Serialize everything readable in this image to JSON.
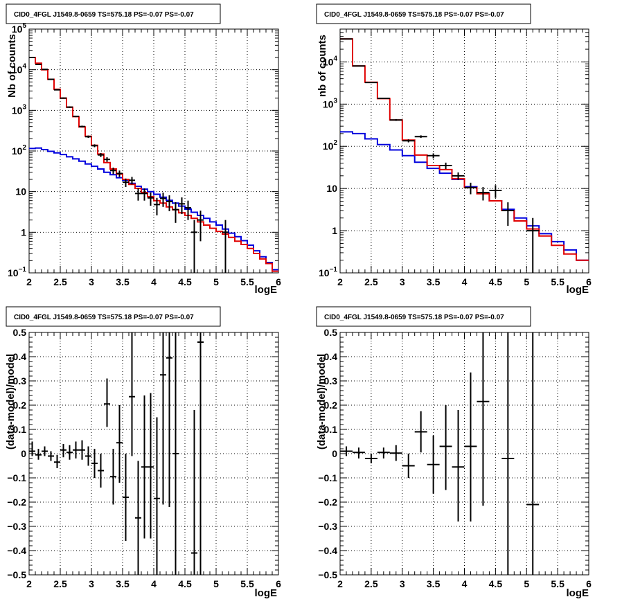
{
  "chart_data": [
    {
      "type": "line",
      "title": "CID0_4FGL J1549.8-0659 TS=575.18 PS=-0.07 PS=-0.07",
      "xlabel": "logE",
      "ylabel": "Nb of counts",
      "xlim": [
        2,
        6
      ],
      "ylim": [
        0.1,
        100000
      ],
      "yscale": "log",
      "grid": true,
      "xticks": [
        "2",
        "2.5",
        "3",
        "3.5",
        "4",
        "4.5",
        "5",
        "5.5",
        "6"
      ],
      "yticks": [
        {
          "value": 0.1,
          "label": "10",
          "exp": "−1"
        },
        {
          "value": 1,
          "label": "1",
          "exp": ""
        },
        {
          "value": 10,
          "label": "10",
          "exp": ""
        },
        {
          "value": 100,
          "label": "10",
          "exp": "2"
        },
        {
          "value": 1000,
          "label": "10",
          "exp": "3"
        },
        {
          "value": 10000,
          "label": "10",
          "exp": "4"
        },
        {
          "value": 100000,
          "label": "10",
          "exp": "5"
        }
      ],
      "series": [
        {
          "name": "",
          "color": "#e00000",
          "kind": "step",
          "edges": [
            2.0,
            2.1,
            2.2,
            2.3,
            2.4,
            2.5,
            2.6,
            2.7,
            2.8,
            2.9,
            3.0,
            3.1,
            3.2,
            3.3,
            3.4,
            3.5,
            3.6,
            3.7,
            3.8,
            3.9,
            4.0,
            4.1,
            4.2,
            4.3,
            4.4,
            4.5,
            4.6,
            4.7,
            4.8,
            4.9,
            5.0,
            5.1,
            5.2,
            5.3,
            5.4,
            5.5,
            5.6,
            5.7,
            5.8,
            5.9,
            6.0
          ],
          "values": [
            20000,
            14500,
            10000,
            5800,
            3300,
            2000,
            1200,
            700,
            390,
            230,
            138,
            84,
            52,
            36,
            27,
            20,
            15,
            12,
            9.5,
            7.5,
            6.0,
            5.2,
            4.2,
            3.6,
            3.0,
            2.6,
            2.2,
            1.8,
            1.5,
            1.25,
            1.05,
            0.9,
            0.75,
            0.6,
            0.5,
            0.4,
            0.3,
            0.22,
            0.17,
            0.11
          ]
        },
        {
          "name": "",
          "color": "#0000dd",
          "kind": "step",
          "edges": [
            2.0,
            2.1,
            2.2,
            2.3,
            2.4,
            2.5,
            2.6,
            2.7,
            2.8,
            2.9,
            3.0,
            3.1,
            3.2,
            3.3,
            3.4,
            3.5,
            3.6,
            3.7,
            3.8,
            3.9,
            4.0,
            4.1,
            4.2,
            4.3,
            4.4,
            4.5,
            4.6,
            4.7,
            4.8,
            4.9,
            5.0,
            5.1,
            5.2,
            5.3,
            5.4,
            5.5,
            5.6,
            5.7,
            5.8,
            5.9,
            6.0
          ],
          "values": [
            115,
            118,
            108,
            98,
            90,
            82,
            72,
            64,
            56,
            48,
            42,
            36,
            30,
            26,
            22,
            19,
            16,
            13.5,
            11.5,
            10,
            8.6,
            7.3,
            6.1,
            5.2,
            4.4,
            3.7,
            3.1,
            2.6,
            2.2,
            1.8,
            1.5,
            1.2,
            0.95,
            0.78,
            0.62,
            0.48,
            0.35,
            0.25,
            0.18,
            0.12
          ]
        }
      ],
      "points": [
        {
          "x": 2.05,
          "y": 20000,
          "lo": 19700,
          "hi": 20300
        },
        {
          "x": 2.15,
          "y": 13500,
          "lo": 13300,
          "hi": 13700
        },
        {
          "x": 2.25,
          "y": 10200,
          "lo": 10000,
          "hi": 10400
        },
        {
          "x": 2.35,
          "y": 5800,
          "lo": 5650,
          "hi": 5950
        },
        {
          "x": 2.45,
          "y": 3200,
          "lo": 3100,
          "hi": 3300
        },
        {
          "x": 2.55,
          "y": 2000,
          "lo": 1930,
          "hi": 2070
        },
        {
          "x": 2.65,
          "y": 1200,
          "lo": 1150,
          "hi": 1250
        },
        {
          "x": 2.75,
          "y": 710,
          "lo": 680,
          "hi": 740
        },
        {
          "x": 2.85,
          "y": 400,
          "lo": 380,
          "hi": 420
        },
        {
          "x": 2.95,
          "y": 225,
          "lo": 210,
          "hi": 240
        },
        {
          "x": 3.05,
          "y": 135,
          "lo": 124,
          "hi": 146
        },
        {
          "x": 3.15,
          "y": 80,
          "lo": 71,
          "hi": 89
        },
        {
          "x": 3.25,
          "y": 62,
          "lo": 54,
          "hi": 70
        },
        {
          "x": 3.35,
          "y": 33,
          "lo": 27,
          "hi": 39
        },
        {
          "x": 3.45,
          "y": 28,
          "lo": 23,
          "hi": 33
        },
        {
          "x": 3.55,
          "y": 17,
          "lo": 13,
          "hi": 21
        },
        {
          "x": 3.65,
          "y": 19,
          "lo": 15,
          "hi": 23
        },
        {
          "x": 3.75,
          "y": 9,
          "lo": 6,
          "hi": 12
        },
        {
          "x": 3.85,
          "y": 9,
          "lo": 6,
          "hi": 12
        },
        {
          "x": 3.95,
          "y": 7,
          "lo": 4.5,
          "hi": 9.5
        },
        {
          "x": 4.05,
          "y": 4.8,
          "lo": 2.6,
          "hi": 7
        },
        {
          "x": 4.15,
          "y": 6.8,
          "lo": 4.2,
          "hi": 9.4
        },
        {
          "x": 4.25,
          "y": 5.7,
          "lo": 3.3,
          "hi": 8.1
        },
        {
          "x": 4.35,
          "y": 3.6,
          "lo": 1.7,
          "hi": 5.5
        },
        {
          "x": 4.45,
          "y": 5.0,
          "lo": 2.8,
          "hi": 7.2
        },
        {
          "x": 4.55,
          "y": 4.0,
          "lo": 2.0,
          "hi": 6.0
        },
        {
          "x": 4.65,
          "y": 1,
          "lo": 0.1,
          "hi": 2.0
        },
        {
          "x": 4.75,
          "y": 2,
          "lo": 0.6,
          "hi": 3.4
        },
        {
          "x": 5.15,
          "y": 1,
          "lo": 0.1,
          "hi": 2.0
        }
      ]
    },
    {
      "type": "line",
      "title": "CID0_4FGL J1549.8-0659 TS=575.18 PS=-0.07 PS=-0.07",
      "xlabel": "logE",
      "ylabel": "nb of counts",
      "xlim": [
        2,
        6
      ],
      "ylim": [
        0.1,
        60000
      ],
      "yscale": "log",
      "grid": true,
      "xticks": [
        "2",
        "2.5",
        "3",
        "3.5",
        "4",
        "4.5",
        "5",
        "5.5",
        "6"
      ],
      "yticks": [
        {
          "value": 0.1,
          "label": "10",
          "exp": "−1"
        },
        {
          "value": 1,
          "label": "1",
          "exp": ""
        },
        {
          "value": 10,
          "label": "10",
          "exp": ""
        },
        {
          "value": 100,
          "label": "10",
          "exp": "2"
        },
        {
          "value": 1000,
          "label": "10",
          "exp": "3"
        },
        {
          "value": 10000,
          "label": "10",
          "exp": "4"
        }
      ],
      "series": [
        {
          "name": "",
          "color": "#e00000",
          "kind": "step",
          "edges": [
            2.0,
            2.2,
            2.4,
            2.6,
            2.8,
            3.0,
            3.2,
            3.4,
            3.6,
            3.8,
            4.0,
            4.2,
            4.4,
            4.6,
            4.8,
            5.0,
            5.2,
            5.4,
            5.6,
            5.8,
            6.0
          ],
          "values": [
            35000,
            8000,
            3300,
            1350,
            420,
            140,
            62,
            35,
            28,
            17,
            10.5,
            7.5,
            5.1,
            3.0,
            1.7,
            1.1,
            0.75,
            0.45,
            0.28,
            0.2
          ]
        },
        {
          "name": "",
          "color": "#0000dd",
          "kind": "step",
          "edges": [
            2.0,
            2.2,
            2.4,
            2.6,
            2.8,
            3.0,
            3.2,
            3.4,
            3.6,
            3.8,
            4.0,
            4.2,
            4.4,
            4.6,
            4.8,
            5.0,
            5.2,
            5.4,
            5.6,
            5.8,
            6.0
          ],
          "values": [
            220,
            200,
            150,
            110,
            82,
            60,
            42,
            30,
            23,
            16.5,
            11,
            7.8,
            5.1,
            3.2,
            2.0,
            1.3,
            0.85,
            0.55,
            0.35,
            0.2
          ]
        }
      ],
      "points": [
        {
          "x": 2.1,
          "y": 35000,
          "lo": 34700,
          "hi": 35300
        },
        {
          "x": 2.3,
          "y": 8000,
          "lo": 7850,
          "hi": 8150
        },
        {
          "x": 2.5,
          "y": 3250,
          "lo": 3150,
          "hi": 3350
        },
        {
          "x": 2.7,
          "y": 1370,
          "lo": 1320,
          "hi": 1420
        },
        {
          "x": 2.9,
          "y": 420,
          "lo": 400,
          "hi": 440
        },
        {
          "x": 3.1,
          "y": 135,
          "lo": 124,
          "hi": 146
        },
        {
          "x": 3.3,
          "y": 170,
          "lo": 158,
          "hi": 182
        },
        {
          "x": 3.5,
          "y": 60,
          "lo": 52,
          "hi": 68
        },
        {
          "x": 3.7,
          "y": 35,
          "lo": 29,
          "hi": 41
        },
        {
          "x": 3.9,
          "y": 20,
          "lo": 16,
          "hi": 24
        },
        {
          "x": 4.1,
          "y": 10.5,
          "lo": 7.3,
          "hi": 13.7
        },
        {
          "x": 4.3,
          "y": 8,
          "lo": 5.2,
          "hi": 10.8
        },
        {
          "x": 4.5,
          "y": 9,
          "lo": 6,
          "hi": 12
        },
        {
          "x": 4.7,
          "y": 3,
          "lo": 1.3,
          "hi": 4.7
        },
        {
          "x": 5.1,
          "y": 1,
          "lo": 0.1,
          "hi": 2.0
        }
      ]
    },
    {
      "type": "scatter",
      "title": "CID0_4FGL J1549.8-0659 TS=575.18 PS=-0.07 PS=-0.07",
      "xlabel": "logE",
      "ylabel": "(data-model)/model",
      "xlim": [
        2,
        6
      ],
      "ylim": [
        -0.5,
        0.5
      ],
      "grid": true,
      "xticks": [
        "2",
        "2.5",
        "3",
        "3.5",
        "4",
        "4.5",
        "5",
        "5.5",
        "6"
      ],
      "yticks": [
        "−0.5",
        "−0.4",
        "−0.3",
        "−0.2",
        "−0.1",
        "0",
        "0.1",
        "0.2",
        "0.3",
        "0.4",
        "0.5"
      ],
      "points": [
        {
          "x": 2.05,
          "y": 0.01,
          "lo": -0.01,
          "hi": 0.05
        },
        {
          "x": 2.15,
          "y": -0.005,
          "lo": -0.025,
          "hi": 0.02
        },
        {
          "x": 2.25,
          "y": 0.01,
          "lo": -0.01,
          "hi": 0.03
        },
        {
          "x": 2.35,
          "y": -0.01,
          "lo": -0.03,
          "hi": 0.01
        },
        {
          "x": 2.45,
          "y": -0.035,
          "lo": -0.06,
          "hi": -0.005
        },
        {
          "x": 2.55,
          "y": 0.015,
          "lo": -0.015,
          "hi": 0.04
        },
        {
          "x": 2.65,
          "y": 0.005,
          "lo": -0.025,
          "hi": 0.035
        },
        {
          "x": 2.75,
          "y": 0.015,
          "lo": -0.02,
          "hi": 0.05
        },
        {
          "x": 2.85,
          "y": 0.015,
          "lo": -0.025,
          "hi": 0.055
        },
        {
          "x": 2.95,
          "y": -0.01,
          "lo": -0.05,
          "hi": 0.03
        },
        {
          "x": 3.05,
          "y": -0.04,
          "lo": -0.1,
          "hi": 0.02
        },
        {
          "x": 3.15,
          "y": -0.07,
          "lo": -0.14,
          "hi": 0.0
        },
        {
          "x": 3.25,
          "y": 0.205,
          "lo": 0.11,
          "hi": 0.31
        },
        {
          "x": 3.35,
          "y": -0.095,
          "lo": -0.21,
          "hi": 0.02
        },
        {
          "x": 3.45,
          "y": 0.045,
          "lo": -0.12,
          "hi": 0.2
        },
        {
          "x": 3.55,
          "y": -0.18,
          "lo": -0.36,
          "hi": 0.0
        },
        {
          "x": 3.65,
          "y": 0.235,
          "lo": -0.01,
          "hi": 0.5
        },
        {
          "x": 3.75,
          "y": -0.265,
          "lo": -0.5,
          "hi": -0.03
        },
        {
          "x": 3.85,
          "y": -0.055,
          "lo": -0.35,
          "hi": 0.24
        },
        {
          "x": 3.95,
          "y": -0.055,
          "lo": -0.35,
          "hi": 0.25
        },
        {
          "x": 4.05,
          "y": -0.185,
          "lo": -0.5,
          "hi": 0.15
        },
        {
          "x": 4.15,
          "y": 0.325,
          "lo": -0.21,
          "hi": 0.5
        },
        {
          "x": 4.25,
          "y": 0.395,
          "lo": -0.22,
          "hi": 0.5
        },
        {
          "x": 4.35,
          "y": 0.0,
          "lo": -0.5,
          "hi": 0.5
        },
        {
          "x": 4.65,
          "y": -0.41,
          "lo": -0.5,
          "hi": 0.18
        },
        {
          "x": 4.75,
          "y": 0.46,
          "lo": -0.5,
          "hi": 0.5
        }
      ]
    },
    {
      "type": "scatter",
      "title": "CID0_4FGL J1549.8-0659 TS=575.18 PS=-0.07 PS=-0.07",
      "xlabel": "logE",
      "ylabel": "(data-model)/model",
      "xlim": [
        2,
        6
      ],
      "ylim": [
        -0.5,
        0.5
      ],
      "grid": true,
      "xticks": [
        "2",
        "2.5",
        "3",
        "3.5",
        "4",
        "4.5",
        "5",
        "5.5",
        "6"
      ],
      "yticks": [
        "−0.5",
        "−0.4",
        "−0.3",
        "−0.2",
        "−0.1",
        "0",
        "0.1",
        "0.2",
        "0.3",
        "0.4",
        "0.5"
      ],
      "points": [
        {
          "x": 2.1,
          "y": 0.01,
          "lo": -0.01,
          "hi": 0.03
        },
        {
          "x": 2.3,
          "y": 0.005,
          "lo": -0.02,
          "hi": 0.025
        },
        {
          "x": 2.5,
          "y": -0.02,
          "lo": -0.04,
          "hi": 0.0
        },
        {
          "x": 2.7,
          "y": 0.005,
          "lo": -0.02,
          "hi": 0.025
        },
        {
          "x": 2.9,
          "y": 0.002,
          "lo": -0.03,
          "hi": 0.035
        },
        {
          "x": 3.1,
          "y": -0.05,
          "lo": -0.1,
          "hi": 0.0
        },
        {
          "x": 3.3,
          "y": 0.09,
          "lo": 0.005,
          "hi": 0.175
        },
        {
          "x": 3.5,
          "y": -0.045,
          "lo": -0.165,
          "hi": 0.075
        },
        {
          "x": 3.7,
          "y": 0.03,
          "lo": -0.15,
          "hi": 0.2
        },
        {
          "x": 3.9,
          "y": -0.055,
          "lo": -0.28,
          "hi": 0.18
        },
        {
          "x": 4.1,
          "y": 0.03,
          "lo": -0.28,
          "hi": 0.335
        },
        {
          "x": 4.3,
          "y": 0.215,
          "lo": -0.215,
          "hi": 0.5
        },
        {
          "x": 4.7,
          "y": -0.02,
          "lo": -0.5,
          "hi": 0.5
        },
        {
          "x": 5.1,
          "y": -0.21,
          "lo": -0.5,
          "hi": 0.5
        }
      ]
    }
  ]
}
